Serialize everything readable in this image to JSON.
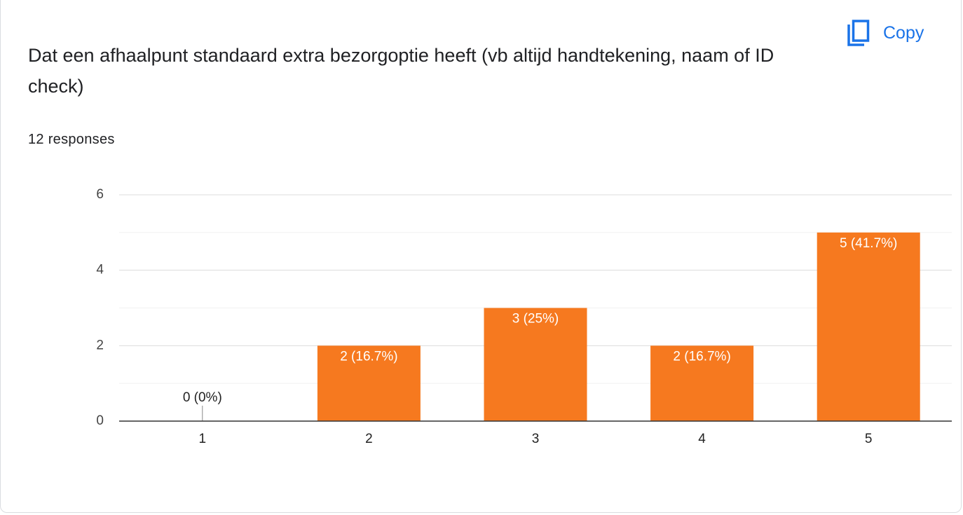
{
  "chart_data": {
    "type": "bar",
    "title": "Dat een afhaalpunt standaard extra bezorgoptie heeft (vb altijd handtekening, naam of ID check)",
    "subtitle": "12 responses",
    "button": "Copy",
    "categories": [
      "1",
      "2",
      "3",
      "4",
      "5"
    ],
    "values": [
      0,
      2,
      3,
      2,
      5
    ],
    "value_labels": [
      "0 (0%)",
      "2 (16.7%)",
      "3 (25%)",
      "2 (16.7%)",
      "5 (41.7%)"
    ],
    "color": "#f6791f",
    "ylim": [
      0,
      6
    ],
    "yticks": [
      0,
      2,
      4,
      6
    ],
    "minor_yticks": [
      1,
      3,
      5
    ],
    "grid": true
  }
}
